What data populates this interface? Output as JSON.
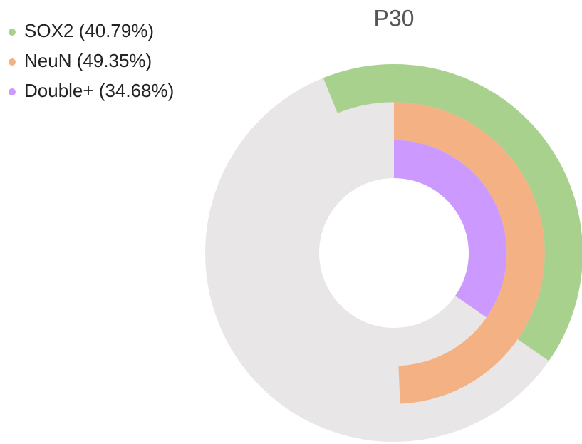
{
  "chart_data": {
    "type": "radial_bar",
    "title": "P30",
    "max": 100,
    "series": [
      {
        "name": "SOX2 (40.79%)",
        "color": "#a9d18e",
        "values": [
          40.79
        ],
        "start_angle": -22
      },
      {
        "name": "NeuN (49.35%)",
        "color": "#f4b183",
        "values": [
          49.35
        ],
        "start_angle": 0
      },
      {
        "name": "Double+ (34.68%)",
        "color": "#cc99ff",
        "values": [
          34.68
        ],
        "start_angle": 0
      }
    ],
    "track_color": "#e8e6e6",
    "legend": "top-left"
  }
}
